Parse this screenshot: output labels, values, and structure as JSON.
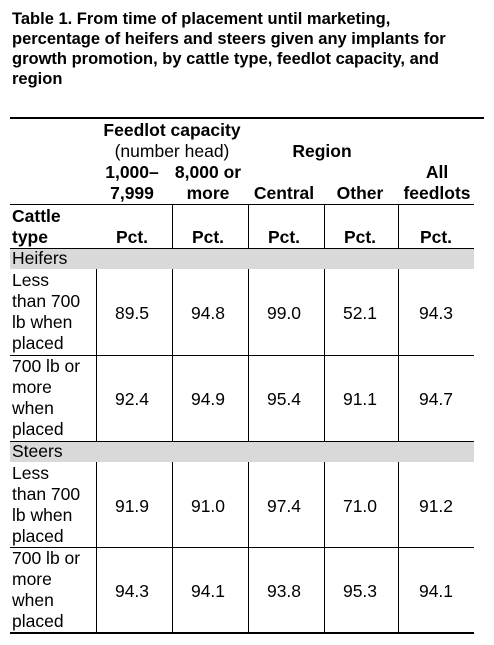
{
  "title": "Table 1. From time of placement until marketing, percentage of heifers and steers given any implants for growth promotion, by cattle type, feedlot capacity, and region",
  "header": {
    "feedlot_capacity": "Feedlot capacity",
    "number_head": "(number head)",
    "region": "Region",
    "col1a": "1,000–",
    "col1b": "7,999",
    "col2a": "8,000 or",
    "col2b": "more",
    "col3": "Central",
    "col4": "Other",
    "col5a": "All",
    "col5b": "feedlots",
    "cattle": "Cattle",
    "type": "type",
    "pct": "Pct."
  },
  "sections": [
    {
      "name": "Heifers",
      "rows": [
        {
          "label": [
            "Less",
            "than 700",
            "lb when",
            "placed"
          ],
          "values": [
            "89.5",
            "94.8",
            "99.0",
            "52.1",
            "94.3"
          ]
        },
        {
          "label": [
            "700 lb or",
            "more",
            "when",
            "placed"
          ],
          "values": [
            "92.4",
            "94.9",
            "95.4",
            "91.1",
            "94.7"
          ]
        }
      ]
    },
    {
      "name": "Steers",
      "rows": [
        {
          "label": [
            "Less",
            "than 700",
            "lb when",
            "placed"
          ],
          "values": [
            "91.9",
            "91.0",
            "97.4",
            "71.0",
            "91.2"
          ]
        },
        {
          "label": [
            "700 lb or",
            "more",
            "when",
            "placed"
          ],
          "values": [
            "94.3",
            "94.1",
            "93.8",
            "95.3",
            "94.1"
          ]
        }
      ]
    }
  ]
}
